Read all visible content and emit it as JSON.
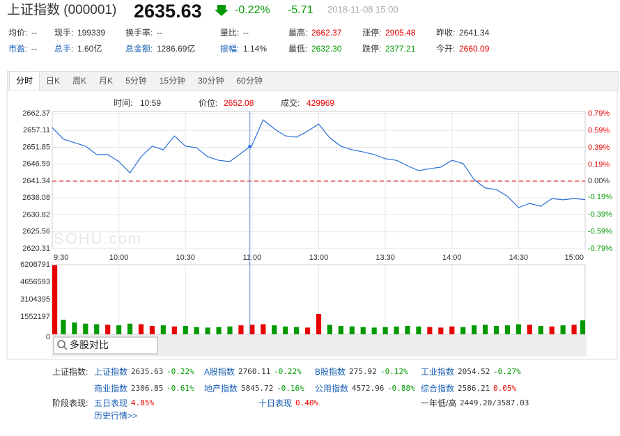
{
  "header": {
    "name": "上证指数 (000001)",
    "price": "2635.63",
    "change_pct": "-0.22%",
    "change": "-5.71",
    "time": "2018-11-08 15:00"
  },
  "stats": [
    [
      {
        "label": "均价:",
        "value": "--",
        "color": "#333"
      },
      {
        "label": "现手:",
        "value": "199339",
        "color": "#333"
      },
      {
        "label": "换手率:",
        "value": "--",
        "color": "#333"
      },
      {
        "label": "量比:",
        "value": "--",
        "color": "#333"
      },
      {
        "label": "最高:",
        "value": "2662.37",
        "color": "#e60000"
      },
      {
        "label": "涨停:",
        "value": "2905.48",
        "color": "#e60000"
      },
      {
        "label": "昨收:",
        "value": "2641.34",
        "color": "#333"
      }
    ],
    [
      {
        "label": "市盈:",
        "value": "--",
        "color": "#333",
        "label_color": "#1a5fb4"
      },
      {
        "label": "总手:",
        "value": "1.60亿",
        "color": "#333",
        "label_color": "#1a5fb4"
      },
      {
        "label": "总金额:",
        "value": "1286.69亿",
        "color": "#333",
        "label_color": "#1a5fb4"
      },
      {
        "label": "振幅:",
        "value": "1.14%",
        "color": "#333",
        "label_color": "#1a5fb4"
      },
      {
        "label": "最低:",
        "value": "2632.30",
        "color": "#009900"
      },
      {
        "label": "跌停:",
        "value": "2377.21",
        "color": "#009900"
      },
      {
        "label": "今开:",
        "value": "2660.09",
        "color": "#e60000"
      }
    ]
  ],
  "tabs": [
    "分时",
    "日K",
    "周K",
    "月K",
    "5分钟",
    "15分钟",
    "30分钟",
    "60分钟"
  ],
  "cursor": {
    "time_label": "时间:",
    "time": "10:59",
    "price_label": "价位:",
    "price": 2652.08,
    "volume_label": "成交:",
    "volume": 429969
  },
  "watermark": "SOHU.com",
  "compare_button": "多股对比",
  "chart_data": [
    {
      "type": "line",
      "color": "#2a6fd6",
      "grid": true,
      "categories": [
        "9:30",
        null,
        null,
        null,
        null,
        null,
        "10:00",
        null,
        null,
        null,
        null,
        null,
        "10:30",
        null,
        null,
        null,
        null,
        null,
        "11:00",
        null,
        null,
        null,
        null,
        null,
        "13:00",
        null,
        null,
        null,
        null,
        null,
        "13:30",
        null,
        null,
        null,
        null,
        null,
        "14:00",
        null,
        null,
        null,
        null,
        null,
        "14:30",
        null,
        null,
        null,
        null,
        null,
        "15:00"
      ],
      "values": [
        2658.0,
        2654.4,
        2653.3,
        2652.2,
        2649.6,
        2649.6,
        2647.4,
        2643.9,
        2648.9,
        2652.2,
        2651.1,
        2655.4,
        2652.2,
        2651.7,
        2648.9,
        2647.8,
        2647.4,
        2650.0,
        2652.6,
        2660.4,
        2657.6,
        2655.4,
        2655.0,
        2656.9,
        2659.1,
        2654.8,
        2652.2,
        2651.1,
        2650.4,
        2649.6,
        2648.3,
        2647.8,
        2646.1,
        2644.6,
        2645.2,
        2645.7,
        2647.8,
        2646.8,
        2641.8,
        2639.2,
        2638.7,
        2636.6,
        2633.1,
        2634.4,
        2633.5,
        2635.9,
        2635.5,
        2635.9,
        2635.6
      ],
      "ylim": [
        2620.31,
        2662.37
      ],
      "yticks": [
        2620.31,
        2625.56,
        2630.82,
        2636.08,
        2641.34,
        2646.59,
        2651.85,
        2657.11,
        2662.37
      ],
      "reference_line": 2641.34,
      "y2lim": [
        -0.79,
        0.79
      ],
      "y2ticks": [
        {
          "value": 0.79,
          "label": "0.79%"
        },
        {
          "value": 0.59,
          "label": "0.59%"
        },
        {
          "value": 0.39,
          "label": "0.39%"
        },
        {
          "value": 0.19,
          "label": "0.19%"
        },
        {
          "value": 0,
          "label": "0.00%"
        },
        {
          "value": -0.19,
          "label": "-0.19%"
        },
        {
          "value": -0.39,
          "label": "-0.39%"
        },
        {
          "value": -0.59,
          "label": "-0.59%"
        },
        {
          "value": -0.79,
          "label": "-0.79%"
        }
      ]
    },
    {
      "type": "bar",
      "up_color": "#e60000",
      "down_color": "#009900",
      "values": [
        6150000,
        1300000,
        1050000,
        950000,
        900000,
        850000,
        800000,
        950000,
        900000,
        750000,
        800000,
        700000,
        750000,
        650000,
        600000,
        650000,
        700000,
        800000,
        850000,
        900000,
        800000,
        700000,
        650000,
        600000,
        1800000,
        850000,
        750000,
        700000,
        650000,
        600000,
        650000,
        700000,
        750000,
        700000,
        650000,
        600000,
        700000,
        650000,
        800000,
        850000,
        750000,
        800000,
        900000,
        850000,
        750000,
        700000,
        800000,
        850000,
        1250000
      ],
      "ylim": [
        0,
        6208791
      ],
      "yticks": [
        0,
        1552197,
        3104395,
        4656593,
        6208791
      ]
    }
  ],
  "indices": {
    "label": "上证指数:",
    "items": [
      {
        "name": "上证指数",
        "value": "2635.63",
        "change": "-0.22%"
      },
      {
        "name": "A股指数",
        "value": "2760.11",
        "change": "-0.22%"
      },
      {
        "name": "B股指数",
        "value": "275.92",
        "change": "-0.12%"
      },
      {
        "name": "工业指数",
        "value": "2054.52",
        "change": "-0.27%"
      },
      {
        "name": "商业指数",
        "value": "2306.85",
        "change": "-0.61%"
      },
      {
        "name": "地产指数",
        "value": "5845.72",
        "change": "-0.16%"
      },
      {
        "name": "公用指数",
        "value": "4572.96",
        "change": "-0.88%"
      },
      {
        "name": "综合指数",
        "value": "2586.21",
        "change": "0.05%"
      }
    ]
  },
  "period": {
    "label": "阶段表现:",
    "items": [
      {
        "name": "五日表现",
        "value": "4.85%",
        "color": "#e60000"
      },
      {
        "name": "十日表现",
        "value": "0.40%",
        "color": "#e60000"
      },
      {
        "name": "一年低/高",
        "value": "2449.20/3587.03",
        "color": "#333"
      }
    ],
    "history": "历史行情>>"
  }
}
